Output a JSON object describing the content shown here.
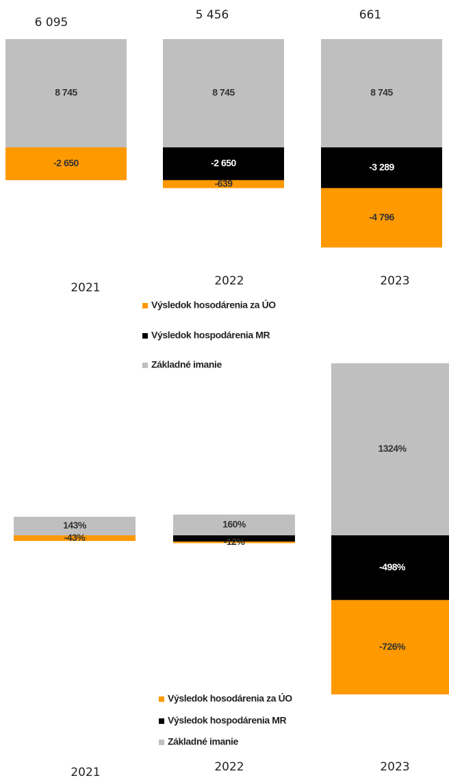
{
  "chart_data": [
    {
      "type": "bar",
      "stacked": true,
      "categories": [
        "2021",
        "2022",
        "2023"
      ],
      "series": [
        {
          "name": "Výsledok hosodárenia za ÚO",
          "color": "#ff9900",
          "values": [
            -2650,
            -639,
            -4796
          ],
          "value_labels": [
            "-2 650",
            "-639",
            "-4 796"
          ]
        },
        {
          "name": "Výsledok hospodárenia MR",
          "color": "#000000",
          "values": [
            null,
            -2650,
            -3289
          ],
          "value_labels": [
            null,
            "-2 650",
            "-3 289"
          ]
        },
        {
          "name": "Základné imanie",
          "color": "#bfbfbf",
          "values": [
            8745,
            8745,
            8745
          ],
          "value_labels": [
            "8 745",
            "8 745",
            "8 745"
          ]
        }
      ],
      "totals": [
        6095,
        5456,
        661
      ],
      "total_labels": [
        "6 095",
        "5 456",
        "661"
      ]
    },
    {
      "type": "bar",
      "stacked": true,
      "categories": [
        "2021",
        "2022",
        "2023"
      ],
      "series": [
        {
          "name": "Výsledok hosodárenia za ÚO",
          "color": "#ff9900",
          "values": [
            -43,
            -12,
            -726
          ],
          "value_labels": [
            "-43%",
            "-12%",
            "-726%"
          ]
        },
        {
          "name": "Výsledok hospodárenia MR",
          "color": "#000000",
          "values": [
            null,
            -48,
            -498
          ],
          "value_labels": [
            null,
            null,
            "-498%"
          ]
        },
        {
          "name": "Základné imanie",
          "color": "#bfbfbf",
          "values": [
            143,
            160,
            1324
          ],
          "value_labels": [
            "143%",
            "160%",
            "1324%"
          ]
        }
      ]
    }
  ]
}
